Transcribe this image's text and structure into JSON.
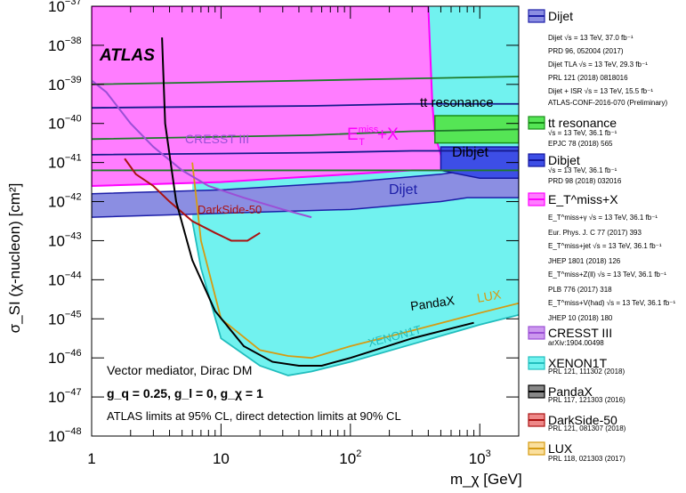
{
  "chart_data": {
    "type": "exclusion-plot",
    "xlabel": "m_χ [GeV]",
    "ylabel": "σ_SI (χ-nucleon) [cm²]",
    "xscale": "log",
    "yscale": "log",
    "xlim": [
      1,
      2000
    ],
    "ylim": [
      1e-48,
      1e-37
    ],
    "x_ticks": [
      {
        "v": 1,
        "label": "1"
      },
      {
        "v": 10,
        "label": "10"
      },
      {
        "v": 100,
        "label": "10",
        "exp": "2"
      },
      {
        "v": 1000,
        "label": "10",
        "exp": "3"
      }
    ],
    "y_ticks": [
      {
        "v": -37,
        "label": "10",
        "exp": "−37"
      },
      {
        "v": -38,
        "label": "10",
        "exp": "−38"
      },
      {
        "v": -39,
        "label": "10",
        "exp": "−39"
      },
      {
        "v": -40,
        "label": "10",
        "exp": "−40"
      },
      {
        "v": -41,
        "label": "10",
        "exp": "−41"
      },
      {
        "v": -42,
        "label": "10",
        "exp": "−42"
      },
      {
        "v": -43,
        "label": "10",
        "exp": "−43"
      },
      {
        "v": -44,
        "label": "10",
        "exp": "−44"
      },
      {
        "v": -45,
        "label": "10",
        "exp": "−45"
      },
      {
        "v": -46,
        "label": "10",
        "exp": "−46"
      },
      {
        "v": -47,
        "label": "10",
        "exp": "−47"
      },
      {
        "v": -48,
        "label": "10",
        "exp": "−48"
      }
    ],
    "series": [
      {
        "key": "lux",
        "name": "LUX",
        "kind": "dd-fill",
        "color": "#fadf9d",
        "line": "#d69b12",
        "x": [
          6,
          7,
          10,
          20,
          33,
          50,
          100,
          300,
          1000,
          2000
        ],
        "log_y": [
          -41.0,
          -43.0,
          -45.0,
          -45.8,
          -45.95,
          -46.0,
          -45.7,
          -45.3,
          -44.85,
          -44.6
        ]
      },
      {
        "key": "xenon1t",
        "name": "XENON1T",
        "kind": "dd-fill",
        "color": "#71f2ef",
        "line": "#21bdbd",
        "x": [
          6,
          7,
          10,
          20,
          33,
          50,
          100,
          300,
          1000,
          2000
        ],
        "log_y": [
          -42.5,
          -43.7,
          -45.5,
          -46.2,
          -46.45,
          -46.35,
          -46.1,
          -45.65,
          -45.15,
          -44.9
        ]
      },
      {
        "key": "cresst",
        "name": "CRESST III",
        "color": "#9b4fd6",
        "x": [
          1.0,
          1.3,
          2.0,
          3.0,
          5.0,
          8.0,
          15.0,
          30.0,
          50.0
        ],
        "log_y": [
          -38.9,
          -39.2,
          -40.0,
          -40.6,
          -41.2,
          -41.6,
          -41.9,
          -42.2,
          -42.4
        ]
      },
      {
        "key": "darkside",
        "name": "DarkSide-50",
        "color": "#aa1111",
        "x": [
          1.8,
          2.2,
          3.0,
          4.0,
          6.0,
          9.0,
          12.0,
          16.0,
          20.0
        ],
        "log_y": [
          -40.9,
          -41.3,
          -41.6,
          -42.0,
          -42.5,
          -42.8,
          -43.0,
          -43.0,
          -42.8
        ]
      },
      {
        "key": "pandax",
        "name": "PandaX",
        "color": "#000000",
        "x": [
          3.5,
          3.7,
          4.5,
          6.0,
          9.0,
          15.0,
          25.0,
          40.0,
          60.0,
          100.0,
          300.0,
          900.0
        ],
        "log_y": [
          -37.8,
          -40.0,
          -42.0,
          -43.5,
          -44.8,
          -45.7,
          -46.1,
          -46.2,
          -46.2,
          -46.0,
          -45.5,
          -45.1
        ]
      },
      {
        "key": "met",
        "name": "E_T^miss+X",
        "kind": "collider-fill",
        "color": "#ff7dff",
        "line": "#ff00ff",
        "x_top": [
          1,
          400,
          430,
          450,
          480,
          520,
          550
        ],
        "log_y_top": [
          -37.0,
          -37.0,
          -39.5,
          -40.3,
          -40.6,
          -41.0,
          -41.2
        ],
        "x_bottom": [
          1,
          10,
          30,
          100,
          300,
          550
        ],
        "log_y_bottom": [
          -41.6,
          -41.5,
          -41.4,
          -41.3,
          -41.2,
          -41.2
        ]
      },
      {
        "key": "dijet",
        "name": "Dijet",
        "kind": "collider-fill",
        "color": "#8b8ee2",
        "line": "#1c1ea8",
        "x": [
          1,
          10,
          100,
          500,
          800,
          1200,
          2000
        ],
        "log_y_top": [
          -41.8,
          -41.7,
          -41.5,
          -41.3,
          -41.2,
          -41.3,
          -41.3
        ],
        "log_y_bottom": [
          -42.4,
          -42.3,
          -42.2,
          -42.0,
          -41.9,
          -41.9,
          -41.9
        ]
      },
      {
        "key": "dibjet",
        "name": "Dibjet",
        "kind": "collider-fill",
        "color": "#3d4ee6",
        "line": "#14179e",
        "x": [
          500,
          700,
          1000,
          2000
        ],
        "log_y_top": [
          -40.6,
          -40.6,
          -40.6,
          -40.6
        ],
        "log_y_bottom": [
          -41.2,
          -41.3,
          -41.4,
          -41.4
        ]
      },
      {
        "key": "ttres",
        "name": "tt resonance",
        "kind": "collider-fill",
        "color": "#55e555",
        "line": "#188e18",
        "x": [
          450,
          800,
          2000
        ],
        "log_y_top": [
          -39.8,
          -39.8,
          -39.8
        ],
        "log_y_bottom": [
          -40.5,
          -40.5,
          -40.5
        ]
      }
    ],
    "collider_contours": [
      {
        "color": "#1e7a2a",
        "log_y": [
          -39.0,
          -38.9,
          -38.85,
          -38.8
        ],
        "x": [
          1,
          50,
          300,
          2000
        ]
      },
      {
        "color": "#1e7a2a",
        "log_y": [
          -40.4,
          -40.3,
          -40.2,
          -40.15
        ],
        "x": [
          1,
          50,
          300,
          2000
        ]
      },
      {
        "color": "#1e7a2a",
        "log_y": [
          -41.2,
          -41.2,
          -41.2,
          -41.2
        ],
        "x": [
          1,
          50,
          300,
          2000
        ]
      },
      {
        "color": "#151a8c",
        "log_y": [
          -39.6,
          -39.55,
          -39.5,
          -39.5
        ],
        "x": [
          1,
          50,
          300,
          2000
        ]
      },
      {
        "color": "#151a8c",
        "log_y": [
          -40.8,
          -40.75,
          -40.7,
          -40.7
        ],
        "x": [
          1,
          50,
          300,
          2000
        ]
      }
    ],
    "plot_labels": {
      "atlas": "ATLAS",
      "cresst": "CRESST III",
      "met_main": "E",
      "met_sup": "miss",
      "met_sub": "T",
      "met_tail": "+X",
      "tt": "tt resonance",
      "dibjet": "Dibjet",
      "dijet": "Dijet",
      "darkside": "DarkSide-50",
      "pandax": "PandaX",
      "lux": "LUX",
      "xenon": "XENON1T"
    },
    "notes": {
      "line1": "Vector mediator, Dirac DM",
      "line2": "g_q = 0.25, g_l = 0, g_χ = 1",
      "line3": "ATLAS limits at 95% CL, direct detection limits at 90% CL"
    },
    "legend": [
      {
        "name": "Dijet",
        "color": "#8b8ee2",
        "line": "#1c1ea8",
        "refs": [
          "Dijet √s = 13 TeV, 37.0 fb⁻¹",
          "PRD 96, 052004 (2017)",
          "Dijet TLA √s = 13 TeV, 29.3 fb⁻¹",
          "PRL 121 (2018) 0818016",
          "Dijet + ISR √s = 13 TeV, 15.5 fb⁻¹",
          "ATLAS-CONF-2016-070 (Preliminary)"
        ]
      },
      {
        "name": "tt resonance",
        "color": "#55e555",
        "line": "#188e18",
        "refs": [
          "√s = 13 TeV, 36.1 fb⁻¹",
          "EPJC 78 (2018) 565"
        ]
      },
      {
        "name": "Dibjet",
        "color": "#3d4ee6",
        "line": "#14179e",
        "refs": [
          "√s = 13 TeV, 36.1 fb⁻¹",
          "PRD 98 (2018) 032016"
        ]
      },
      {
        "name": "E_T^miss+X",
        "color": "#ff7dff",
        "line": "#ff00ff",
        "refs": [
          "E_T^miss+γ √s = 13 TeV, 36.1 fb⁻¹",
          "Eur. Phys. J. C 77 (2017) 393",
          "E_T^miss+jet √s = 13 TeV, 36.1 fb⁻¹",
          "JHEP 1801 (2018) 126",
          "E_T^miss+Z(ll) √s = 13 TeV, 36.1 fb⁻¹",
          "PLB 776 (2017) 318",
          "E_T^miss+V(had) √s = 13 TeV, 36.1 fb⁻¹",
          "JHEP 10 (2018) 180"
        ]
      },
      {
        "name": "CRESST III",
        "color": "#cc99ee",
        "line": "#9b4fd6",
        "refs": [
          "arXiv:1904.00498"
        ]
      },
      {
        "name": "XENON1T",
        "color": "#71f2ef",
        "line": "#21bdbd",
        "refs": [
          "PRL 121, 111302 (2018)"
        ]
      },
      {
        "name": "PandaX",
        "color": "#888888",
        "line": "#000000",
        "refs": [
          "PRL 117, 121303 (2016)"
        ]
      },
      {
        "name": "DarkSide-50",
        "color": "#ee8888",
        "line": "#aa1111",
        "refs": [
          "PRL 121, 081307 (2018)"
        ]
      },
      {
        "name": "LUX",
        "color": "#fadf9d",
        "line": "#d69b12",
        "refs": [
          "PRL 118, 021303 (2017)"
        ]
      }
    ]
  }
}
